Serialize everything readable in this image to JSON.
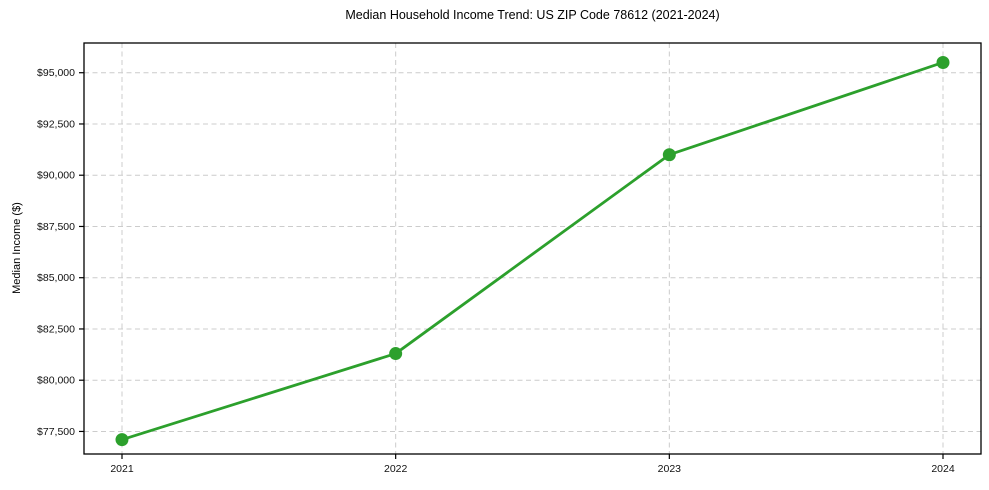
{
  "chart_data": {
    "type": "line",
    "title": "Median Household Income Trend: US ZIP Code 78612 (2021-2024)",
    "xlabel": "",
    "ylabel": "Median Income ($)",
    "x": [
      2021,
      2022,
      2023,
      2024
    ],
    "x_tick_labels": [
      "2021",
      "2022",
      "2023",
      "2024"
    ],
    "series": [
      {
        "name": "Median Household Income",
        "values": [
          77100,
          81300,
          91000,
          95500
        ]
      }
    ],
    "y_ticks": [
      77500,
      80000,
      82500,
      85000,
      87500,
      90000,
      92500,
      95000
    ],
    "y_tick_labels": [
      "$77,500",
      "$80,000",
      "$82,500",
      "$85,000",
      "$87,500",
      "$90,000",
      "$92,500",
      "$95,000"
    ],
    "ylim": [
      76400,
      96450
    ],
    "grid": true,
    "grid_style": "dashed",
    "legend": "none",
    "colors": {
      "line": "#2ca02c",
      "marker": "#2ca02c",
      "grid": "#cccccc",
      "spine": "#000000",
      "text": "#111111",
      "background": "#ffffff"
    }
  }
}
